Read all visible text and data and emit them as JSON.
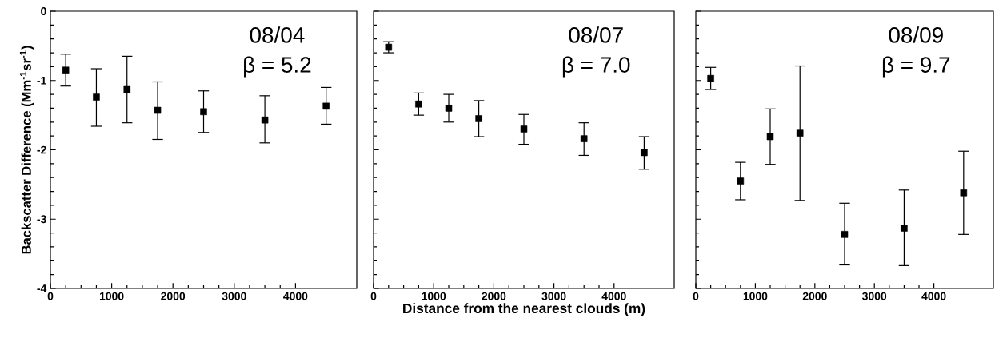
{
  "chart_data": [
    {
      "type": "scatter",
      "ylabel": "Backscatter Difference (Mm$^{-1}$sr$^{-1}$)",
      "annotations": [
        "08/04",
        "β = 5.2"
      ],
      "x": [
        250,
        750,
        1250,
        1750,
        2500,
        3500,
        4500
      ],
      "values": [
        -0.85,
        -1.24,
        -1.13,
        -1.43,
        -1.45,
        -1.57,
        -1.37
      ],
      "errors": [
        [
          -1.08,
          -0.62
        ],
        [
          -1.66,
          -0.83
        ],
        [
          -1.61,
          -0.65
        ],
        [
          -1.85,
          -1.02
        ],
        [
          -1.75,
          -1.15
        ],
        [
          -1.9,
          -1.22
        ],
        [
          -1.63,
          -1.1
        ]
      ],
      "color": "#000000",
      "marker": "square",
      "xlim": [
        0,
        5000
      ],
      "ylim": [
        -4,
        0
      ],
      "xticks": [
        0,
        1000,
        2000,
        3000,
        4000
      ],
      "yticks": [
        -4,
        -3,
        -2,
        -1,
        0
      ]
    },
    {
      "type": "scatter",
      "xlabel": "Distance  from  the  nearest  clouds (m)",
      "annotations": [
        "08/07",
        "β = 7.0"
      ],
      "x": [
        250,
        750,
        1250,
        1750,
        2500,
        3500,
        4500
      ],
      "values": [
        -0.52,
        -1.34,
        -1.4,
        -1.55,
        -1.7,
        -1.84,
        -2.04
      ],
      "errors": [
        [
          -0.6,
          -0.44
        ],
        [
          -1.5,
          -1.18
        ],
        [
          -1.6,
          -1.2
        ],
        [
          -1.81,
          -1.29
        ],
        [
          -1.92,
          -1.49
        ],
        [
          -2.08,
          -1.61
        ],
        [
          -2.28,
          -1.81
        ]
      ],
      "color": "#000000",
      "marker": "square",
      "xlim": [
        0,
        5000
      ],
      "ylim": [
        -4,
        0
      ],
      "xticks": [
        0,
        1000,
        2000,
        3000,
        4000
      ],
      "yticks": [
        -4,
        -3,
        -2,
        -1,
        0
      ],
      "tick_labels": "x"
    },
    {
      "type": "scatter",
      "annotations": [
        "08/09",
        "β = 9.7"
      ],
      "x": [
        250,
        750,
        1250,
        1750,
        2500,
        3500,
        4500
      ],
      "values": [
        -0.97,
        -2.45,
        -1.81,
        -1.76,
        -3.22,
        -3.13,
        -2.62
      ],
      "errors": [
        [
          -1.13,
          -0.81
        ],
        [
          -2.72,
          -2.18
        ],
        [
          -2.21,
          -1.41
        ],
        [
          -2.73,
          -0.79
        ],
        [
          -3.66,
          -2.77
        ],
        [
          -3.67,
          -2.58
        ],
        [
          -3.22,
          -2.02
        ]
      ],
      "color": "#000000",
      "marker": "square",
      "xlim": [
        0,
        5000
      ],
      "ylim": [
        -4,
        0
      ],
      "xticks": [
        0,
        1000,
        2000,
        3000,
        4000
      ],
      "yticks": [
        -4,
        -3,
        -2,
        -1,
        0
      ],
      "tick_labels": "x"
    }
  ]
}
